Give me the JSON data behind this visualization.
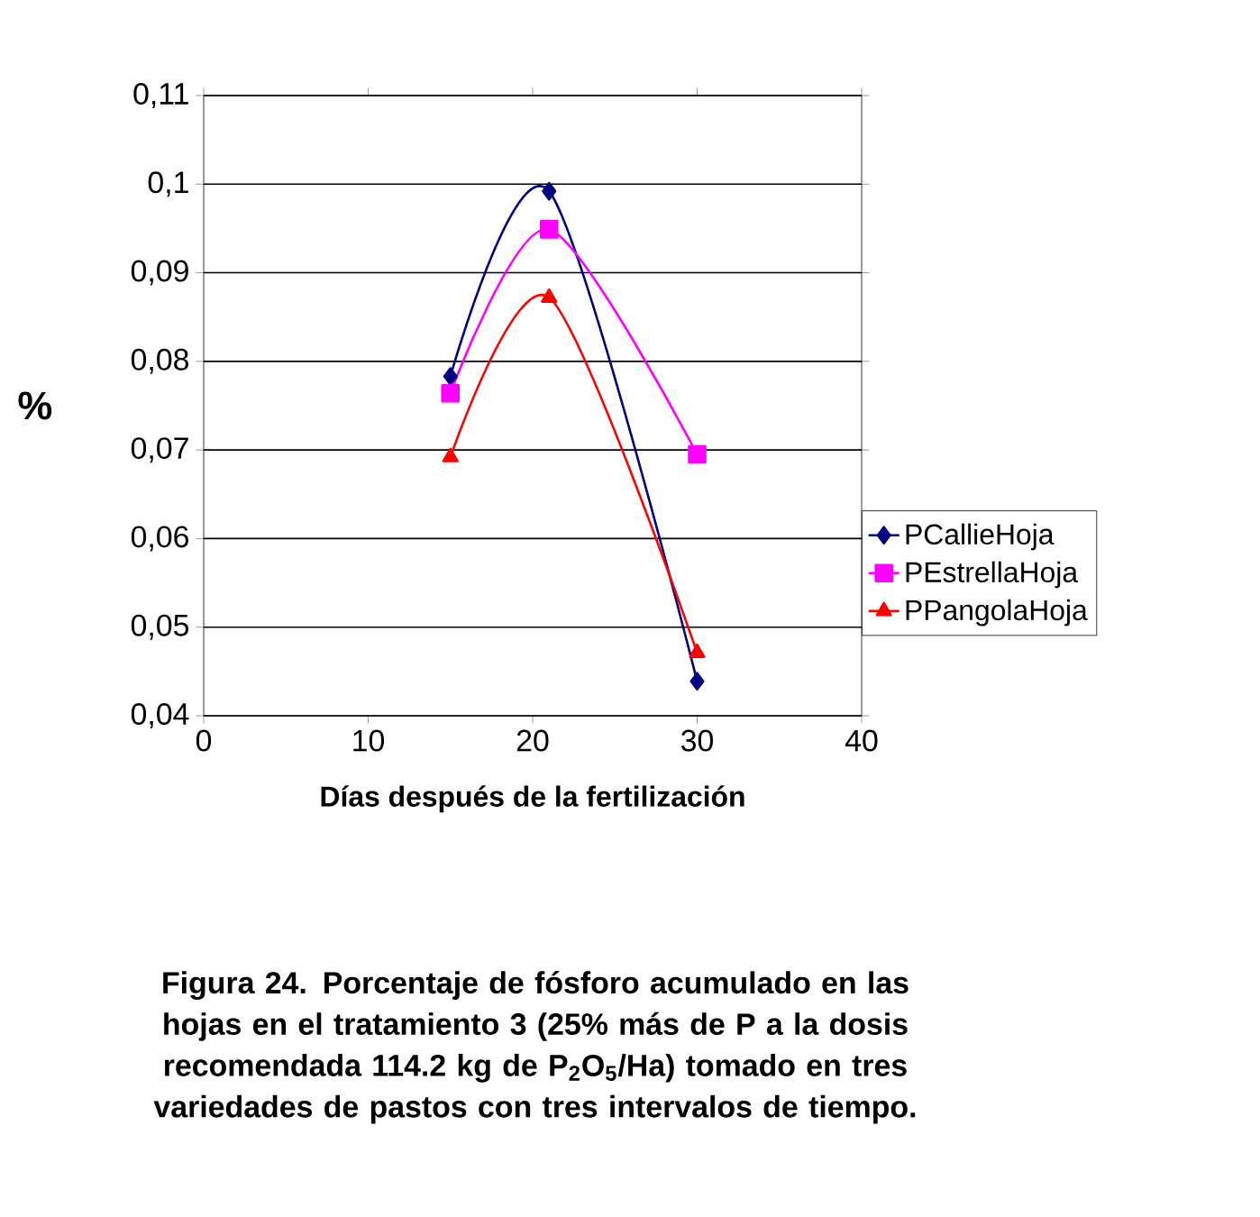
{
  "chart_data": {
    "type": "line",
    "ylabel": "%",
    "xlabel": "Días después de la fertilización",
    "annotations": [
      "Figura 24. Porcentaje de fósforo acumulado en las hojas en el tratamiento 3 (25% más de P a la dosis recomendada 114.2 kg de P$_{2}$O$_{5}$/Ha) tomado en tres variedades de pastos con tres intervalos de tiempo."
    ],
    "x": [
      15,
      21,
      30
    ],
    "series": [
      {
        "name": "PCallieHoja",
        "color": "#000080",
        "marker": "diamond",
        "values": [
          0.0783,
          0.0992,
          0.0439
        ]
      },
      {
        "name": "PEstrellaHoja",
        "color": "#ff00ff",
        "marker": "square",
        "values": [
          0.0764,
          0.0949,
          0.0695
        ]
      },
      {
        "name": "PPangolaHoja",
        "color": "#ff0000",
        "marker": "triangle",
        "values": [
          0.0692,
          0.0872,
          0.0471
        ]
      }
    ],
    "xlim": [
      0,
      40
    ],
    "xticks": [
      0,
      10,
      20,
      30,
      40
    ],
    "ylim": [
      0.04,
      0.11
    ],
    "yticks": [
      {
        "value": 0.04,
        "label": "0,04"
      },
      {
        "value": 0.05,
        "label": "0,05"
      },
      {
        "value": 0.06,
        "label": "0,06"
      },
      {
        "value": 0.07,
        "label": "0,07"
      },
      {
        "value": 0.08,
        "label": "0,08"
      },
      {
        "value": 0.09,
        "label": "0,09"
      },
      {
        "value": 0.1,
        "label": "0,1"
      },
      {
        "value": 0.11,
        "label": "0,11"
      }
    ],
    "grid": "y",
    "legend": "right",
    "line_style": "solid"
  }
}
